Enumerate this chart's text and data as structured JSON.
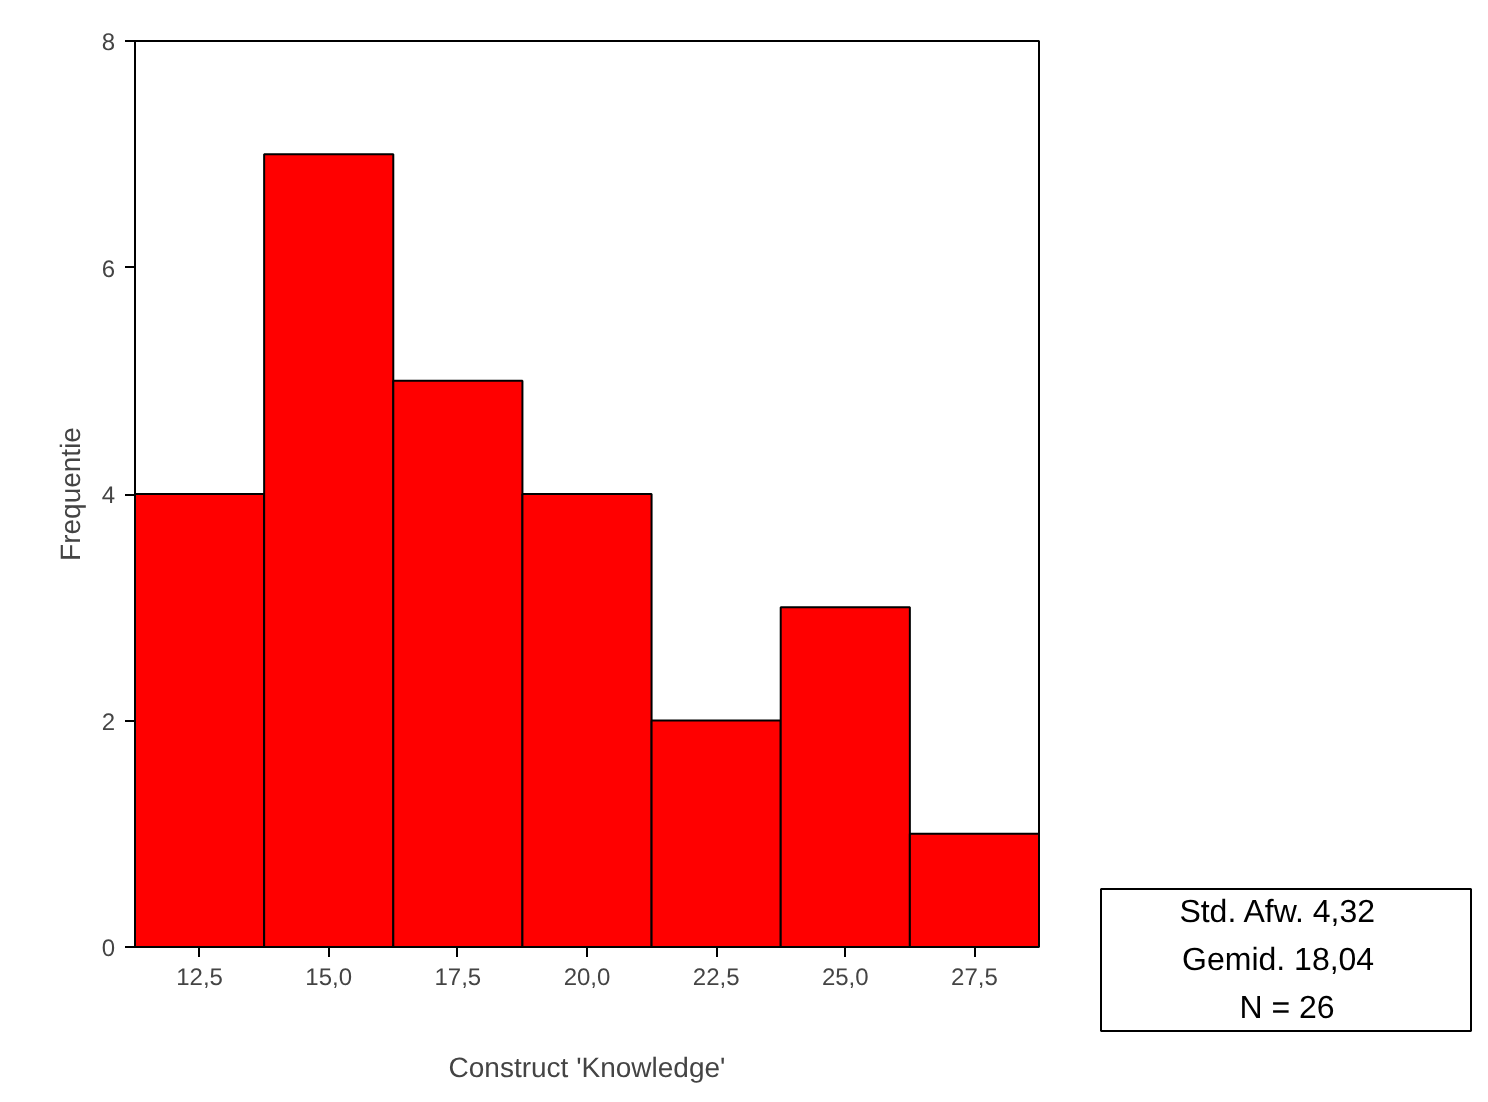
{
  "chart_data": {
    "type": "histogram",
    "xlabel": "Construct 'Knowledge'",
    "ylabel": "Frequentie",
    "bins": [
      11.25,
      13.75,
      16.25,
      18.75,
      21.25,
      23.75,
      26.25,
      28.75
    ],
    "values": [
      4,
      7,
      5,
      4,
      2,
      3,
      1
    ],
    "color": "#ff0000",
    "xlim": [
      11.25,
      28.75
    ],
    "xticks": [
      {
        "value": 12.5,
        "label": "12,5"
      },
      {
        "value": 15,
        "label": "15,0"
      },
      {
        "value": 17.5,
        "label": "17,5"
      },
      {
        "value": 20,
        "label": "20,0"
      },
      {
        "value": 22.5,
        "label": "22,5"
      },
      {
        "value": 25,
        "label": "25,0"
      },
      {
        "value": 27.5,
        "label": "27,5"
      }
    ],
    "ylim": [
      0,
      8
    ],
    "yticks": [
      0,
      2,
      4,
      6,
      8
    ],
    "grid": false,
    "legend": false,
    "annotations": [
      "Std. Afw.   4,32",
      "Gemid.   18,04",
      "N = 26"
    ]
  }
}
